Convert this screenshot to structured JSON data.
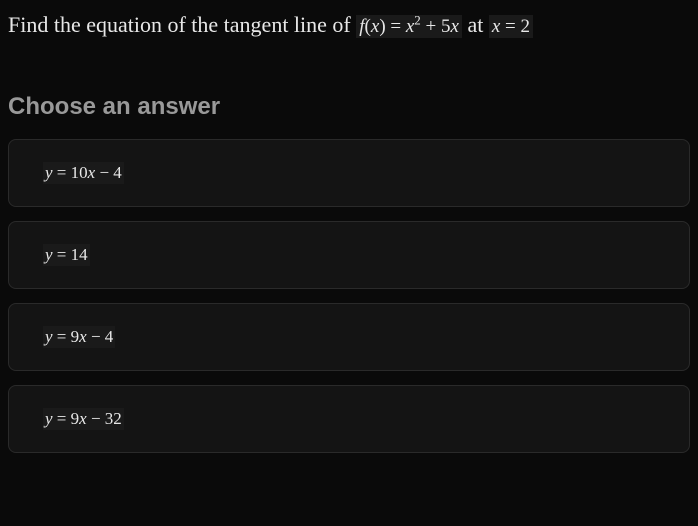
{
  "question": {
    "prefix": "Find the equation of the tangent line of ",
    "function_expr": "f(x) = x² + 5x",
    "middle": " at ",
    "at_expr": "x = 2"
  },
  "choose_label": "Choose an answer",
  "answers": [
    {
      "expr": "y = 10x − 4"
    },
    {
      "expr": "y = 14"
    },
    {
      "expr": "y = 9x − 4"
    },
    {
      "expr": "y = 9x − 32"
    }
  ],
  "styling": {
    "background_color": "#0a0a0a",
    "text_color": "#e8e8e8",
    "muted_text_color": "#999999",
    "option_bg": "#141414",
    "option_border": "#2a2a2a",
    "math_bg": "#1a1a1a",
    "question_fontsize": 22,
    "header_fontsize": 24,
    "answer_fontsize": 17,
    "border_radius": 8
  }
}
